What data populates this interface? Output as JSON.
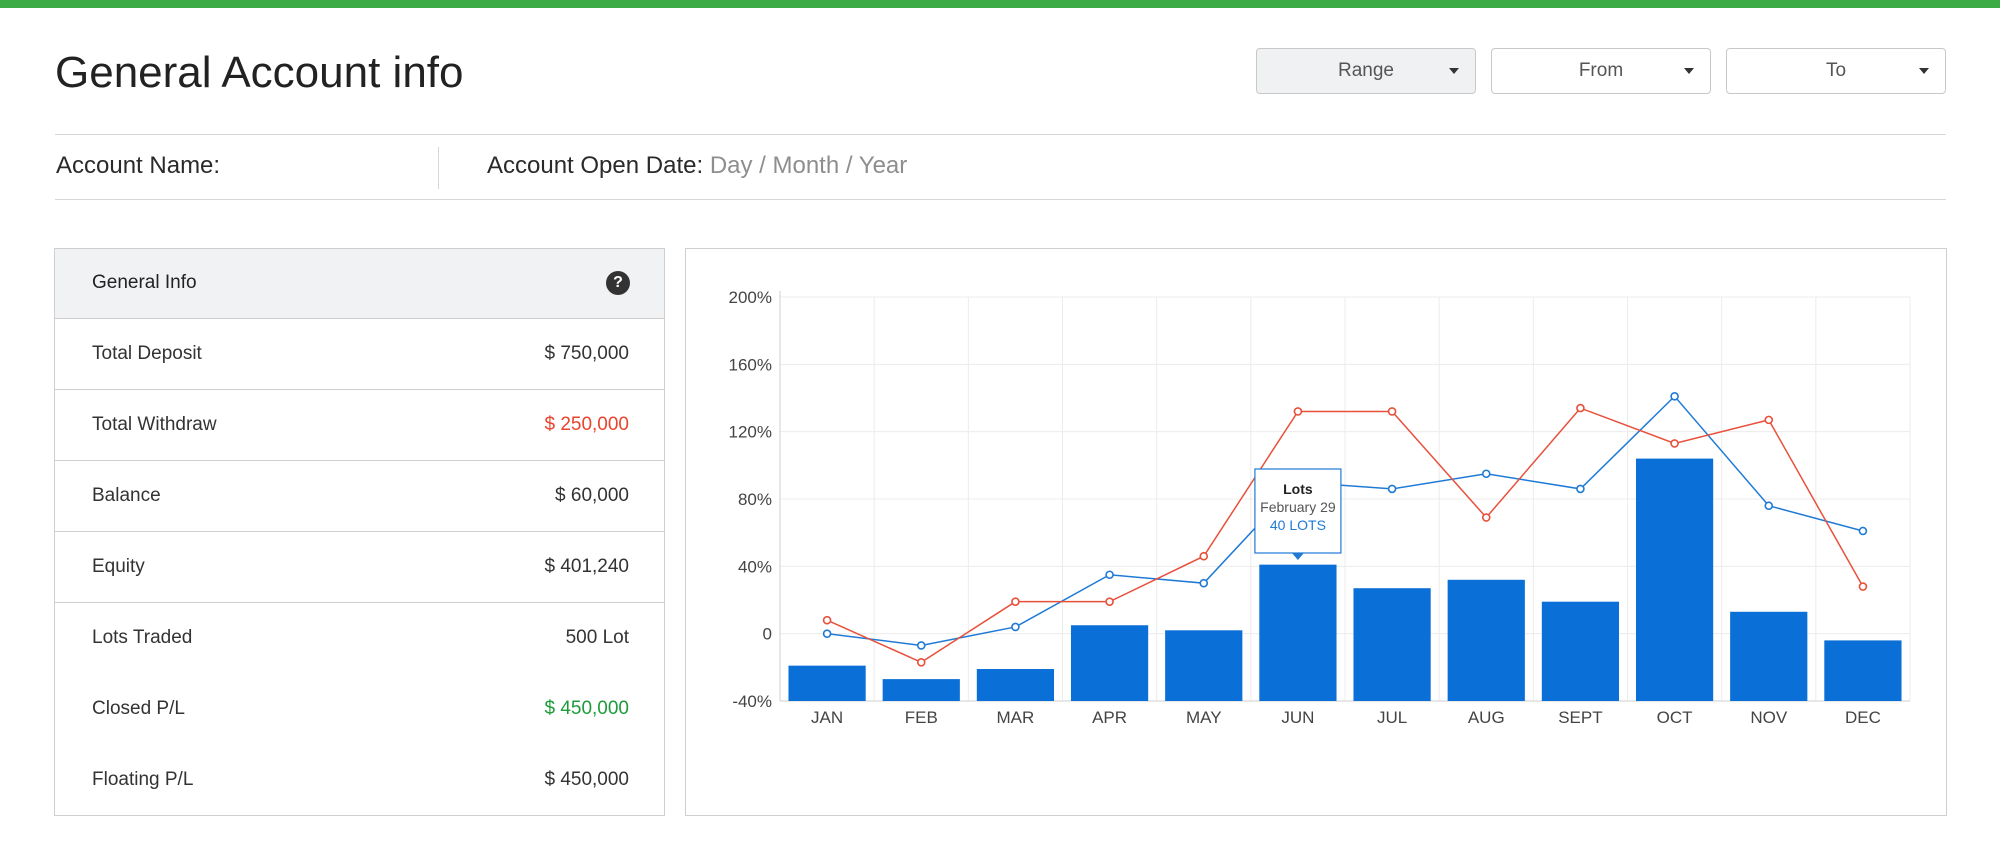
{
  "header": {
    "title": "General Account info",
    "filters": {
      "range": "Range",
      "from": "From",
      "to": "To"
    }
  },
  "account": {
    "name_label": "Account Name:",
    "open_date_label": "Account Open Date:",
    "open_date_value": "Day / Month / Year"
  },
  "general_info": {
    "title": "General Info",
    "help_symbol": "?",
    "rows": [
      {
        "label": "Total Deposit",
        "value": "$ 750,000",
        "color": "#333333"
      },
      {
        "label": "Total Withdraw",
        "value": "$ 250,000",
        "color": "#e8442e"
      },
      {
        "label": "Balance",
        "value": "$ 60,000",
        "color": "#333333"
      },
      {
        "label": "Equity",
        "value": "$ 401,240",
        "color": "#333333"
      },
      {
        "label": "Lots Traded",
        "value": "500 Lot",
        "color": "#333333"
      },
      {
        "label": "Closed P/L",
        "value": "$ 450,000",
        "color": "#1e9b3a"
      },
      {
        "label": "Floating P/L",
        "value": "$ 450,000",
        "color": "#333333"
      }
    ]
  },
  "chart_data": {
    "type": "bar",
    "categories": [
      "JAN",
      "FEB",
      "MAR",
      "APR",
      "MAY",
      "JUN",
      "JUL",
      "AUG",
      "SEPT",
      "OCT",
      "NOV",
      "DEC"
    ],
    "ylim": [
      -40,
      200
    ],
    "yticks": [
      "200%",
      "160%",
      "120%",
      "80%",
      "40%",
      "0",
      "-40%"
    ],
    "ytick_values": [
      200,
      160,
      120,
      80,
      40,
      0,
      -40
    ],
    "grid": true,
    "series": [
      {
        "kind": "bar",
        "color": "#0a6fd6",
        "values": [
          -19,
          -27,
          -21,
          5,
          2,
          41,
          27,
          32,
          19,
          104,
          13,
          -4
        ]
      },
      {
        "kind": "line",
        "color": "#1f7ad6",
        "values": [
          0,
          -7,
          4,
          35,
          30,
          90,
          86,
          95,
          86,
          141,
          76,
          61
        ]
      },
      {
        "kind": "line",
        "color": "#e8503a",
        "values": [
          8,
          -17,
          19,
          19,
          46,
          132,
          132,
          69,
          134,
          113,
          127,
          28
        ]
      }
    ],
    "tooltip": {
      "category": "JUN",
      "title": "Lots",
      "date": "February 29",
      "value": "40 LOTS"
    }
  }
}
